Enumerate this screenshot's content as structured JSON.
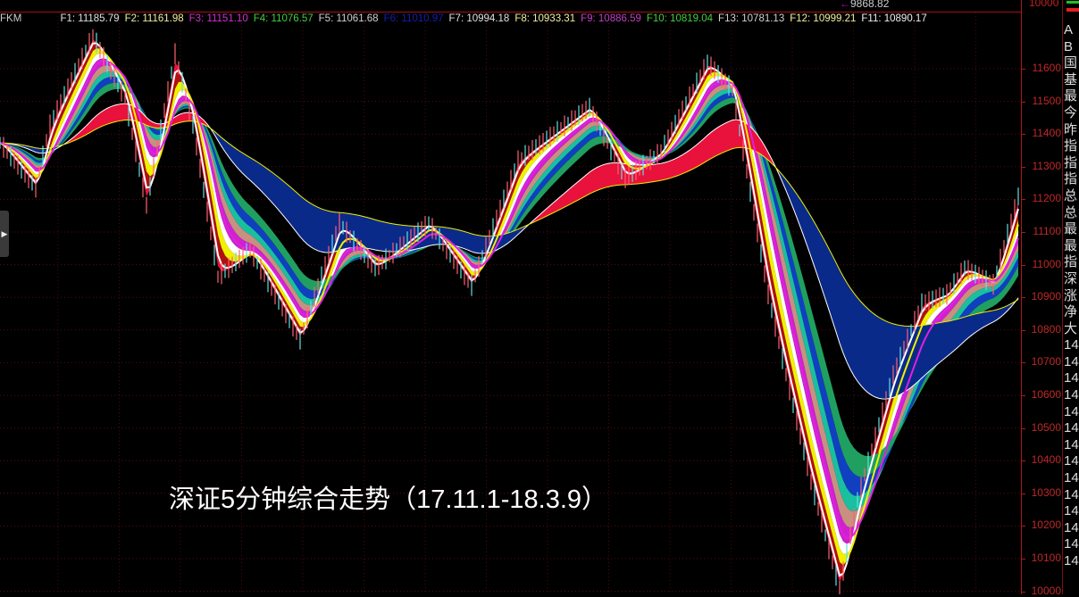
{
  "top_panel": {
    "annotation_value": "9868.82",
    "axis_label": "10000"
  },
  "legend": {
    "app_label": "FKM",
    "items": [
      {
        "label": "F1: 11185.79",
        "color": "#e0e0e0"
      },
      {
        "label": "F2: 11161.98",
        "color": "#f0f0a0"
      },
      {
        "label": "F3: 11151.10",
        "color": "#d030d0"
      },
      {
        "label": "F4: 11076.57",
        "color": "#40d040"
      },
      {
        "label": "F5: 11061.68",
        "color": "#d0d0d0"
      },
      {
        "label": "F6: 11010.97",
        "color": "#1020b0"
      },
      {
        "label": "F7: 10994.18",
        "color": "#e0e0e0"
      },
      {
        "label": "F8: 10933.31",
        "color": "#f0f0a0"
      },
      {
        "label": "F9: 10886.59",
        "color": "#c040c0"
      },
      {
        "label": "F10: 10819.04",
        "color": "#40d040"
      },
      {
        "label": "F13: 10781.13",
        "color": "#d0d0d0"
      },
      {
        "label": "F12: 10999.21",
        "color": "#f0f0a0"
      },
      {
        "label": "F11: 10890.17",
        "color": "#f0f0f0"
      }
    ]
  },
  "side_panel": {
    "rows": [
      "A",
      "B",
      "国",
      "基",
      "最",
      "今",
      "昨",
      "指",
      "指",
      "指",
      "总",
      "总",
      "最",
      "最",
      "指",
      "深",
      "涨",
      "净",
      "大",
      "14",
      "14",
      "14",
      "14",
      "14",
      "14",
      "14",
      "14",
      "14",
      "14",
      "14",
      "14",
      "14",
      "14"
    ]
  },
  "caption": "深证5分钟综合走势（17.11.1-18.3.9）",
  "chart_data": {
    "type": "line",
    "title": "",
    "xlabel": "",
    "ylabel": "",
    "ylim": [
      10000,
      11700
    ],
    "y_ticks": [
      10000,
      10100,
      10200,
      10300,
      10400,
      10500,
      10600,
      10700,
      10800,
      10900,
      11000,
      11100,
      11200,
      11300,
      11400,
      11500,
      11600
    ],
    "grid": true,
    "price_keypoints": {
      "x": [
        0,
        10,
        14,
        26,
        35,
        41,
        49,
        54,
        61,
        70,
        84,
        95,
        105,
        120,
        132,
        145,
        155,
        165,
        175,
        185,
        198,
        205,
        215,
        220,
        227,
        235,
        240,
        250,
        258,
        265,
        270,
        278,
        285
      ],
      "y": [
        11373,
        11237,
        11428,
        11700,
        11510,
        11182,
        11646,
        11428,
        10963,
        11045,
        10772,
        11127,
        10990,
        11127,
        10936,
        11318,
        11400,
        11482,
        11264,
        11346,
        11619,
        11537,
        10909,
        10663,
        10335,
        10007,
        10280,
        10663,
        10881,
        10909,
        10990,
        10940,
        11209
      ]
    },
    "ribbon_colors": [
      "#e8123c",
      "#b01010",
      "#f0f000",
      "#ffffff",
      "#d020d0",
      "#c89080",
      "#18c0a0",
      "#1040c0",
      "#20a060"
    ],
    "slow_band_colors": {
      "up": "#e8123c",
      "down": "#0a2a8a",
      "line1": "#ffffff",
      "line2": "#f0f000"
    },
    "axis_color": "#c02828"
  }
}
